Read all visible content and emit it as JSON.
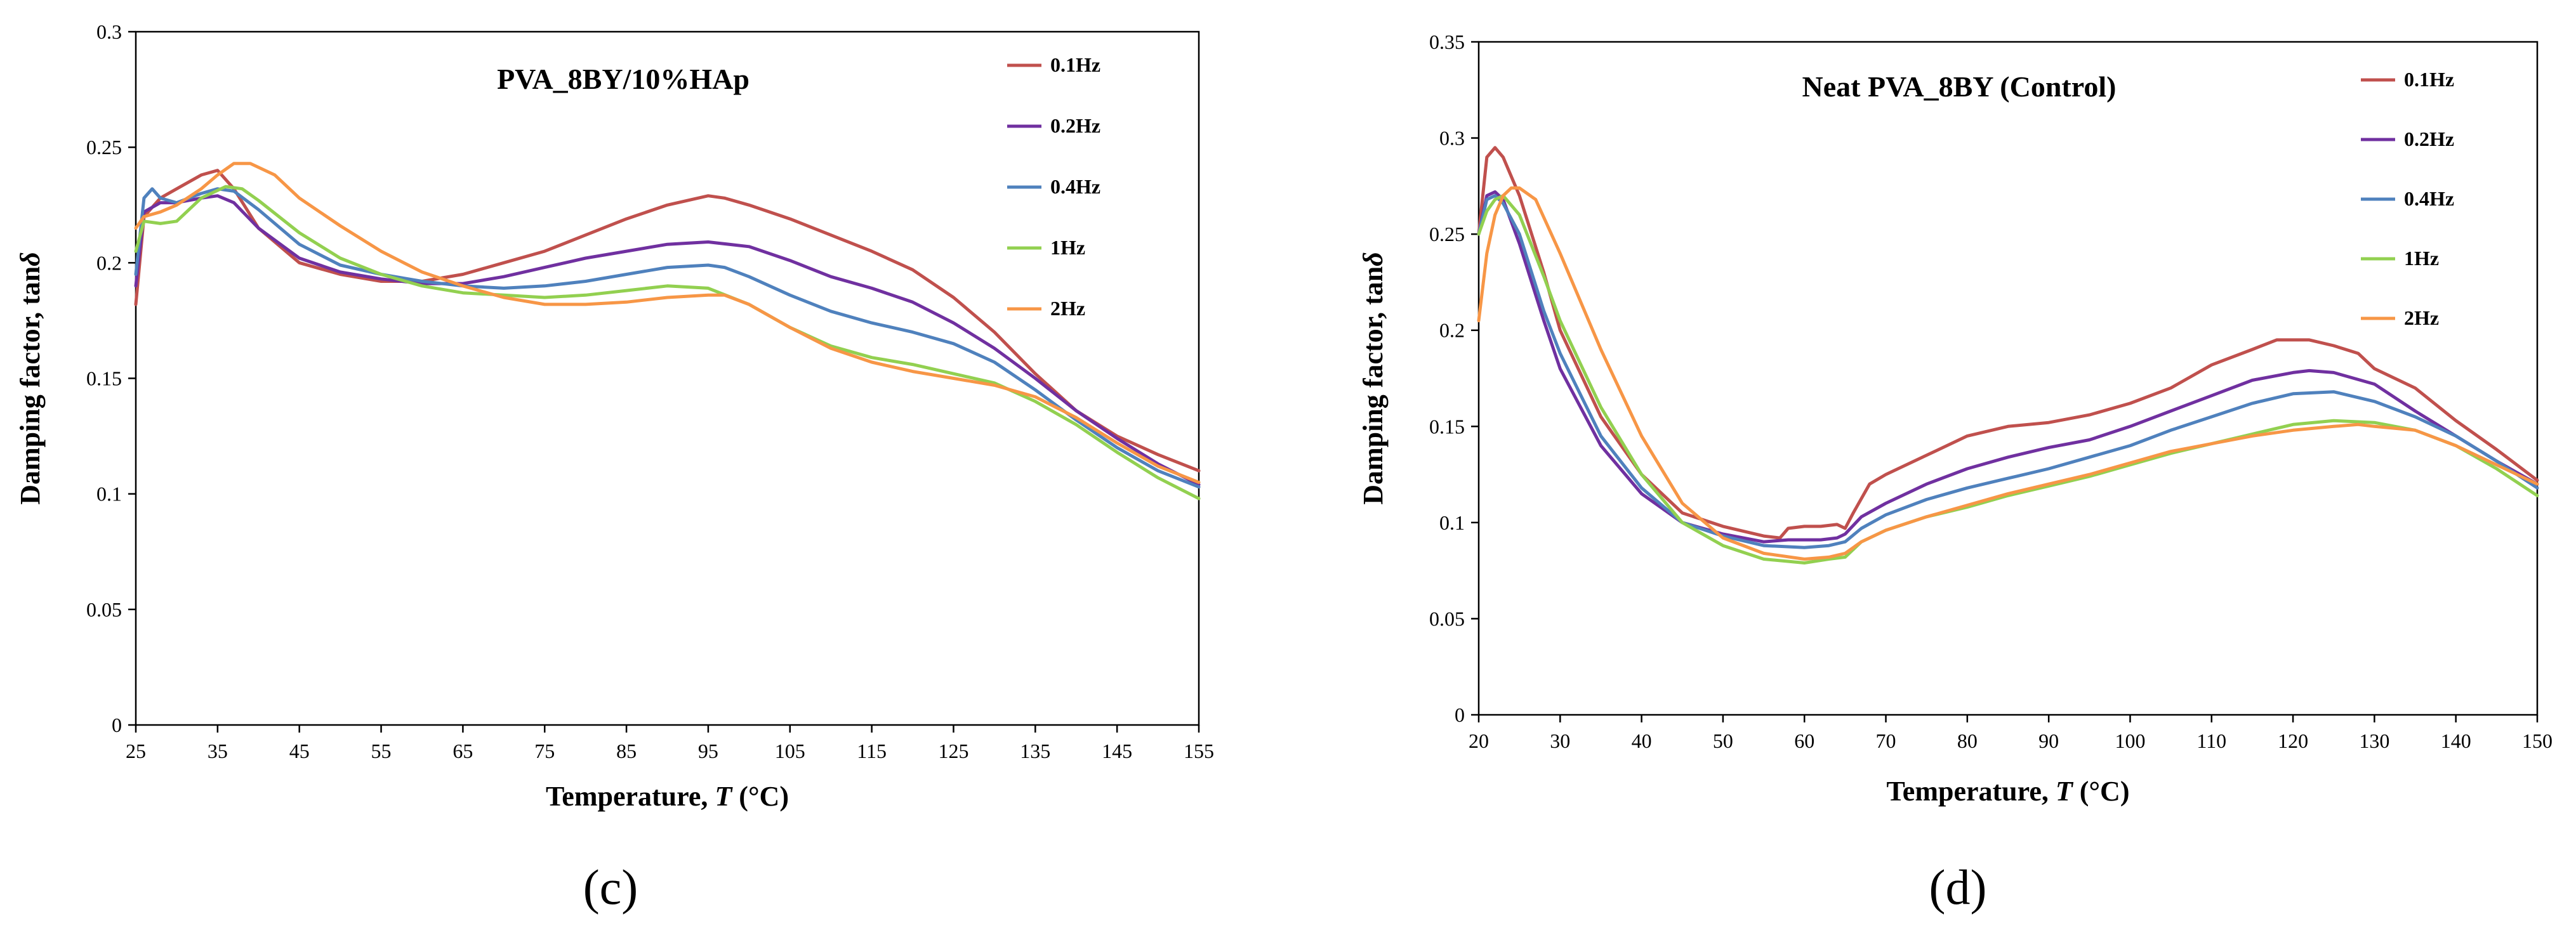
{
  "chart_data": [
    {
      "type": "line",
      "title": "PVA_8BY/10%HAp",
      "panel_label": "(c)",
      "xlabel": "Temperature, ",
      "xlabel_italic": "T",
      "xlabel_unit": " (°C)",
      "ylabel": "Damping factor, tan",
      "ylabel_symbol": "δ",
      "xlim": [
        25,
        155
      ],
      "ylim": [
        0,
        0.3
      ],
      "xticks": [
        25,
        35,
        45,
        55,
        65,
        75,
        85,
        95,
        105,
        115,
        125,
        135,
        145,
        155
      ],
      "xtick_labels": [
        "25",
        "35",
        "45",
        "55",
        "65",
        "75",
        "85",
        "95",
        "105",
        "115",
        "125",
        "135",
        "145",
        "155"
      ],
      "yticks": [
        0,
        0.05,
        0.1,
        0.15,
        0.2,
        0.25,
        0.3
      ],
      "ytick_labels": [
        "0",
        "0.05",
        "0.1",
        "0.15",
        "0.2",
        "0.25",
        "0.3"
      ],
      "legend_position": "top-right",
      "series": [
        {
          "name": "0.1Hz",
          "color": "#c0504d",
          "x": [
            25,
            26,
            28,
            30,
            33,
            35,
            37,
            40,
            45,
            50,
            55,
            60,
            65,
            70,
            75,
            80,
            85,
            90,
            95,
            97,
            100,
            105,
            110,
            115,
            120,
            125,
            130,
            135,
            140,
            145,
            150,
            155
          ],
          "y": [
            0.182,
            0.22,
            0.228,
            0.232,
            0.238,
            0.24,
            0.232,
            0.215,
            0.2,
            0.195,
            0.192,
            0.192,
            0.195,
            0.2,
            0.205,
            0.212,
            0.219,
            0.225,
            0.229,
            0.228,
            0.225,
            0.219,
            0.212,
            0.205,
            0.197,
            0.185,
            0.17,
            0.152,
            0.136,
            0.125,
            0.117,
            0.11
          ]
        },
        {
          "name": "0.2Hz",
          "color": "#7030a0",
          "x": [
            25,
            26,
            28,
            30,
            33,
            35,
            37,
            40,
            45,
            50,
            55,
            60,
            65,
            70,
            75,
            80,
            85,
            90,
            95,
            100,
            105,
            110,
            115,
            120,
            125,
            130,
            135,
            140,
            145,
            150,
            155
          ],
          "y": [
            0.19,
            0.222,
            0.226,
            0.226,
            0.228,
            0.229,
            0.226,
            0.215,
            0.202,
            0.196,
            0.193,
            0.191,
            0.191,
            0.194,
            0.198,
            0.202,
            0.205,
            0.208,
            0.209,
            0.207,
            0.201,
            0.194,
            0.189,
            0.183,
            0.174,
            0.163,
            0.15,
            0.136,
            0.124,
            0.113,
            0.104
          ]
        },
        {
          "name": "0.4Hz",
          "color": "#4f81bd",
          "x": [
            25,
            26,
            27,
            28,
            30,
            33,
            35,
            37,
            40,
            45,
            50,
            55,
            60,
            65,
            70,
            75,
            80,
            85,
            90,
            95,
            97,
            100,
            105,
            110,
            115,
            120,
            125,
            130,
            135,
            140,
            145,
            150,
            155
          ],
          "y": [
            0.195,
            0.228,
            0.232,
            0.228,
            0.226,
            0.23,
            0.232,
            0.231,
            0.223,
            0.208,
            0.199,
            0.195,
            0.192,
            0.19,
            0.189,
            0.19,
            0.192,
            0.195,
            0.198,
            0.199,
            0.198,
            0.194,
            0.186,
            0.179,
            0.174,
            0.17,
            0.165,
            0.157,
            0.145,
            0.132,
            0.12,
            0.11,
            0.103
          ]
        },
        {
          "name": "1Hz",
          "color": "#92d050",
          "x": [
            25,
            26,
            28,
            30,
            33,
            36,
            38,
            40,
            45,
            50,
            55,
            60,
            65,
            70,
            75,
            80,
            85,
            90,
            95,
            100,
            105,
            110,
            115,
            120,
            125,
            130,
            135,
            140,
            145,
            150,
            155
          ],
          "y": [
            0.205,
            0.218,
            0.217,
            0.218,
            0.228,
            0.233,
            0.232,
            0.227,
            0.213,
            0.202,
            0.195,
            0.19,
            0.187,
            0.186,
            0.185,
            0.186,
            0.188,
            0.19,
            0.189,
            0.182,
            0.172,
            0.164,
            0.159,
            0.156,
            0.152,
            0.148,
            0.14,
            0.13,
            0.118,
            0.107,
            0.098
          ]
        },
        {
          "name": "2Hz",
          "color": "#f79646",
          "x": [
            25,
            26,
            28,
            30,
            33,
            35,
            37,
            39,
            42,
            45,
            50,
            55,
            60,
            65,
            70,
            75,
            80,
            85,
            90,
            95,
            97,
            100,
            105,
            110,
            115,
            120,
            125,
            130,
            135,
            140,
            145,
            150,
            155
          ],
          "y": [
            0.215,
            0.22,
            0.222,
            0.225,
            0.232,
            0.238,
            0.243,
            0.243,
            0.238,
            0.228,
            0.216,
            0.205,
            0.196,
            0.19,
            0.185,
            0.182,
            0.182,
            0.183,
            0.185,
            0.186,
            0.186,
            0.182,
            0.172,
            0.163,
            0.157,
            0.153,
            0.15,
            0.147,
            0.142,
            0.133,
            0.122,
            0.112,
            0.105
          ]
        }
      ]
    },
    {
      "type": "line",
      "title": "Neat PVA_8BY (Control)",
      "panel_label": "(d)",
      "xlabel": "Temperature, ",
      "xlabel_italic": "T",
      "xlabel_unit": " (°C)",
      "ylabel": "Damping factor, tan",
      "ylabel_symbol": "δ",
      "xlim": [
        20,
        150
      ],
      "ylim": [
        0,
        0.35
      ],
      "xticks": [
        20,
        30,
        40,
        50,
        60,
        70,
        80,
        90,
        100,
        110,
        120,
        130,
        140,
        150
      ],
      "xtick_labels": [
        "20",
        "30",
        "40",
        "50",
        "60",
        "70",
        "80",
        "90",
        "100",
        "110",
        "120",
        "130",
        "140",
        "150"
      ],
      "yticks": [
        0,
        0.05,
        0.1,
        0.15,
        0.2,
        0.25,
        0.3,
        0.35
      ],
      "ytick_labels": [
        "0",
        "0.05",
        "0.1",
        "0.15",
        "0.2",
        "0.25",
        "0.3",
        "0.35"
      ],
      "legend_position": "top-right",
      "series": [
        {
          "name": "0.1Hz",
          "color": "#c0504d",
          "x": [
            20,
            21,
            22,
            23,
            25,
            28,
            30,
            35,
            40,
            45,
            50,
            55,
            57,
            58,
            60,
            62,
            64,
            65,
            66,
            68,
            70,
            75,
            80,
            85,
            90,
            95,
            100,
            105,
            110,
            115,
            118,
            122,
            125,
            128,
            130,
            135,
            140,
            145,
            150
          ],
          "y": [
            0.25,
            0.29,
            0.295,
            0.29,
            0.27,
            0.23,
            0.2,
            0.155,
            0.125,
            0.105,
            0.098,
            0.093,
            0.092,
            0.097,
            0.098,
            0.098,
            0.099,
            0.097,
            0.105,
            0.12,
            0.125,
            0.135,
            0.145,
            0.15,
            0.152,
            0.156,
            0.162,
            0.17,
            0.182,
            0.19,
            0.195,
            0.195,
            0.192,
            0.188,
            0.18,
            0.17,
            0.153,
            0.138,
            0.122
          ]
        },
        {
          "name": "0.2Hz",
          "color": "#7030a0",
          "x": [
            20,
            21,
            22,
            23,
            25,
            28,
            30,
            35,
            40,
            45,
            50,
            55,
            58,
            60,
            62,
            64,
            65,
            67,
            70,
            75,
            80,
            85,
            90,
            95,
            100,
            105,
            110,
            115,
            120,
            122,
            125,
            130,
            135,
            140,
            145,
            150
          ],
          "y": [
            0.25,
            0.27,
            0.272,
            0.268,
            0.245,
            0.205,
            0.18,
            0.14,
            0.115,
            0.1,
            0.094,
            0.09,
            0.091,
            0.091,
            0.091,
            0.092,
            0.094,
            0.103,
            0.11,
            0.12,
            0.128,
            0.134,
            0.139,
            0.143,
            0.15,
            0.158,
            0.166,
            0.174,
            0.178,
            0.179,
            0.178,
            0.172,
            0.158,
            0.145,
            0.132,
            0.12
          ]
        },
        {
          "name": "0.4Hz",
          "color": "#4f81bd",
          "x": [
            20,
            21,
            22,
            23,
            25,
            28,
            30,
            35,
            40,
            45,
            50,
            55,
            60,
            63,
            65,
            67,
            70,
            75,
            80,
            85,
            90,
            95,
            100,
            105,
            110,
            115,
            120,
            125,
            130,
            135,
            140,
            145,
            150
          ],
          "y": [
            0.25,
            0.268,
            0.27,
            0.266,
            0.25,
            0.21,
            0.188,
            0.145,
            0.118,
            0.1,
            0.093,
            0.088,
            0.087,
            0.088,
            0.09,
            0.097,
            0.104,
            0.112,
            0.118,
            0.123,
            0.128,
            0.134,
            0.14,
            0.148,
            0.155,
            0.162,
            0.167,
            0.168,
            0.163,
            0.155,
            0.145,
            0.132,
            0.118
          ]
        },
        {
          "name": "1Hz",
          "color": "#92d050",
          "x": [
            20,
            21,
            22,
            23,
            25,
            28,
            30,
            35,
            40,
            45,
            50,
            55,
            60,
            63,
            65,
            67,
            70,
            75,
            80,
            85,
            90,
            95,
            100,
            105,
            110,
            115,
            120,
            125,
            130,
            135,
            140,
            145,
            150
          ],
          "y": [
            0.25,
            0.262,
            0.268,
            0.27,
            0.26,
            0.228,
            0.205,
            0.16,
            0.125,
            0.1,
            0.088,
            0.081,
            0.079,
            0.081,
            0.082,
            0.09,
            0.096,
            0.103,
            0.108,
            0.114,
            0.119,
            0.124,
            0.13,
            0.136,
            0.141,
            0.146,
            0.151,
            0.153,
            0.152,
            0.148,
            0.14,
            0.128,
            0.114
          ]
        },
        {
          "name": "2Hz",
          "color": "#f79646",
          "x": [
            20,
            21,
            22,
            23,
            24,
            25,
            27,
            30,
            35,
            40,
            45,
            50,
            55,
            60,
            63,
            65,
            67,
            70,
            75,
            80,
            85,
            90,
            95,
            100,
            105,
            110,
            115,
            120,
            125,
            128,
            130,
            135,
            140,
            145,
            150
          ],
          "y": [
            0.205,
            0.24,
            0.26,
            0.27,
            0.274,
            0.274,
            0.268,
            0.24,
            0.19,
            0.145,
            0.11,
            0.092,
            0.084,
            0.081,
            0.082,
            0.084,
            0.09,
            0.096,
            0.103,
            0.109,
            0.115,
            0.12,
            0.125,
            0.131,
            0.137,
            0.141,
            0.145,
            0.148,
            0.15,
            0.151,
            0.15,
            0.148,
            0.14,
            0.13,
            0.12
          ]
        }
      ]
    }
  ]
}
